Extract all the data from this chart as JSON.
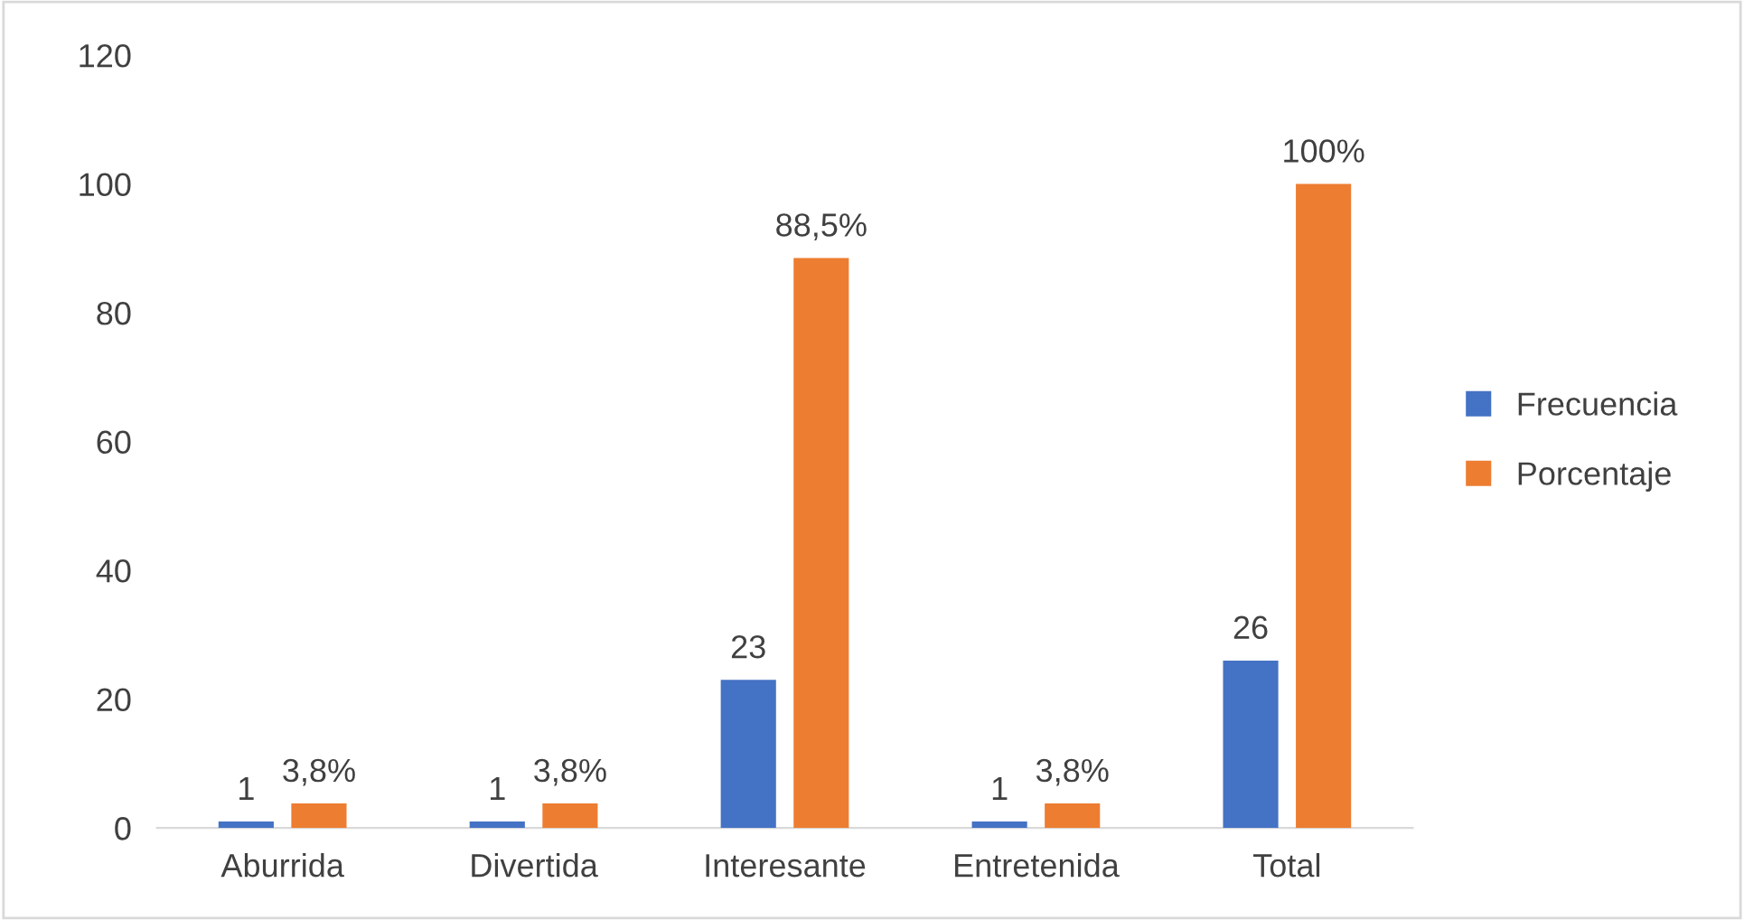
{
  "chart_data": {
    "type": "bar",
    "categories": [
      "Aburrida",
      "Divertida",
      "Interesante",
      "Entretenida",
      "Total"
    ],
    "series": [
      {
        "name": "Frecuencia",
        "color": "#4472c4",
        "values": [
          1,
          1,
          23,
          1,
          26
        ],
        "value_labels": [
          "1",
          "1",
          "23",
          "1",
          "26"
        ]
      },
      {
        "name": "Porcentaje",
        "color": "#ed7d31",
        "values": [
          3.8,
          3.8,
          88.5,
          3.8,
          100
        ],
        "value_labels": [
          "3,8%",
          "3,8%",
          "88,5%",
          "3,8%",
          "100%"
        ]
      }
    ],
    "ylim": [
      0,
      120
    ],
    "yticks": [
      0,
      20,
      40,
      60,
      80,
      100,
      120
    ],
    "grid": false,
    "legend": "right"
  }
}
